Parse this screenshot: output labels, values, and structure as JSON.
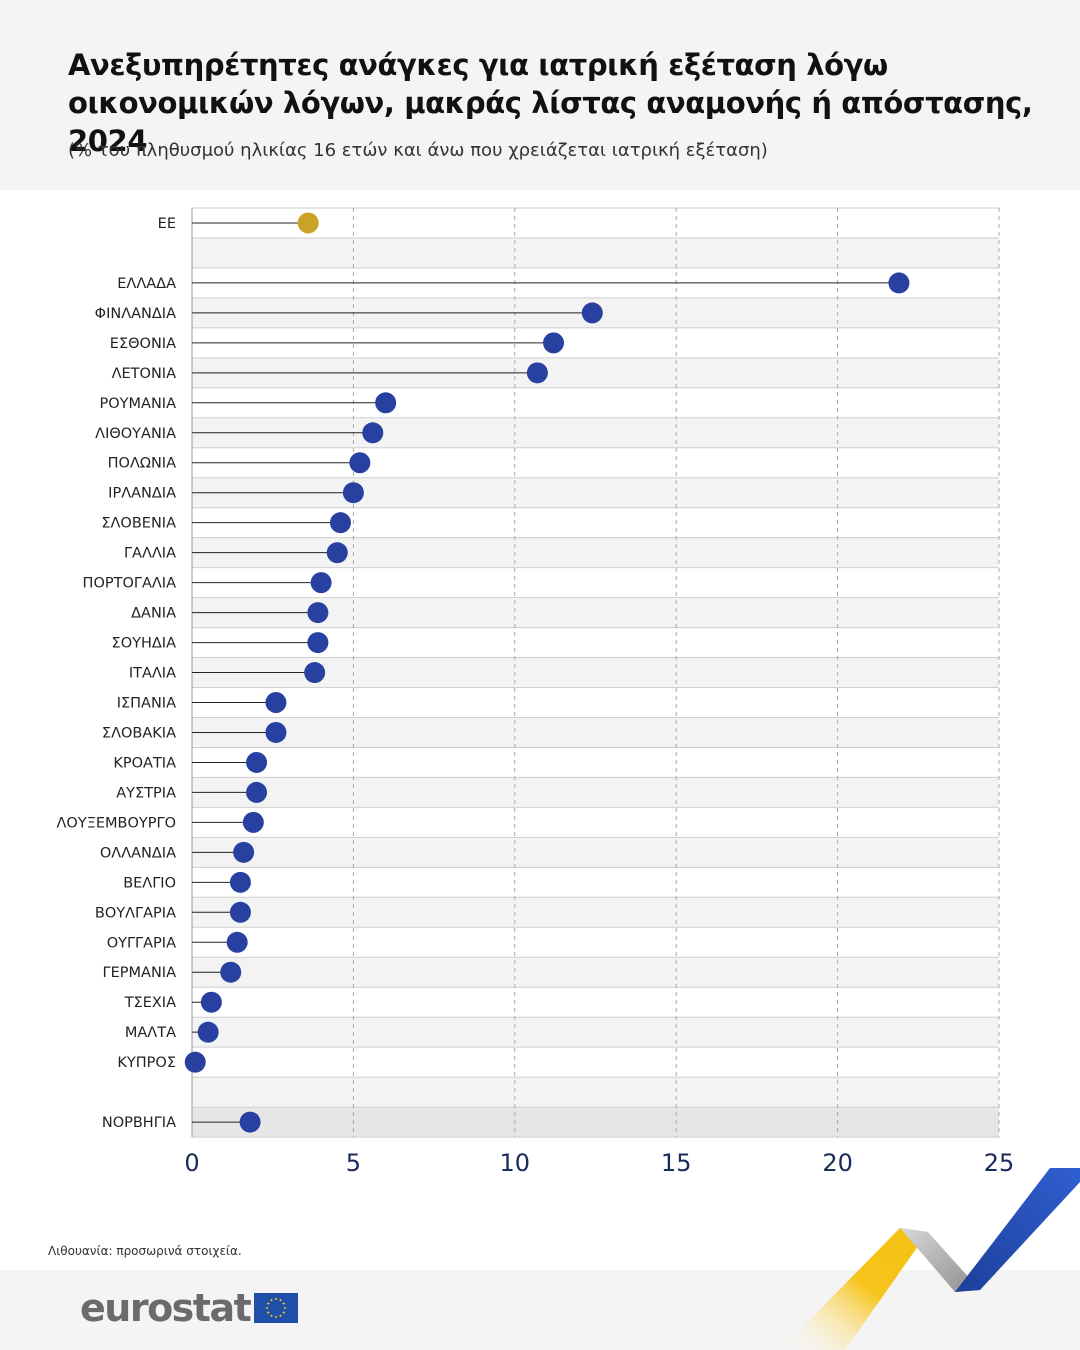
{
  "header": {
    "title": "Ανεξυπηρέτητες ανάγκες για ιατρική εξέταση λόγω οικονομικών λόγων, μακράς λίστας αναμονής  ή απόστασης, 2024",
    "subtitle": "(% του πληθυσμού ηλικίας 16 ετών και άνω που χρειάζεται ιατρική εξέταση)"
  },
  "footer": {
    "footnote": "Λιθουανία: προσωρινά στοιχεία.",
    "logo_text": "eurostat"
  },
  "colors": {
    "eu_marker": "#c9a227",
    "country_marker": "#2841a0",
    "flag_blue": "#1f4fa8",
    "flag_star": "#ffd617"
  },
  "chart_data": {
    "type": "lollipop",
    "orientation": "horizontal",
    "xlim": [
      0,
      25
    ],
    "xticks": [
      0,
      5,
      10,
      15,
      20,
      25
    ],
    "grid": "vertical dashed",
    "rows": [
      {
        "label": "ΕΕ",
        "value": 3.6,
        "group": "eu"
      },
      {
        "label": "",
        "value": null,
        "group": "gap"
      },
      {
        "label": "ΕΛΛΑΔΑ",
        "value": 21.9,
        "group": "country"
      },
      {
        "label": "ΦΙΝΛΑΝΔΙΑ",
        "value": 12.4,
        "group": "country"
      },
      {
        "label": "ΕΣΘΟΝΙΑ",
        "value": 11.2,
        "group": "country"
      },
      {
        "label": "ΛΕΤΟΝΙΑ",
        "value": 10.7,
        "group": "country"
      },
      {
        "label": "ΡΟΥΜΑΝΙΑ",
        "value": 6.0,
        "group": "country"
      },
      {
        "label": "ΛΙΘΟΥΑΝΙΑ",
        "value": 5.6,
        "group": "country"
      },
      {
        "label": "ΠΟΛΩΝΙΑ",
        "value": 5.2,
        "group": "country"
      },
      {
        "label": "ΙΡΛΑΝΔΙΑ",
        "value": 5.0,
        "group": "country"
      },
      {
        "label": "ΣΛΟΒΕΝΙΑ",
        "value": 4.6,
        "group": "country"
      },
      {
        "label": "ΓΑΛΛΙΑ",
        "value": 4.5,
        "group": "country"
      },
      {
        "label": "ΠΟΡΤΟΓΑΛΙΑ",
        "value": 4.0,
        "group": "country"
      },
      {
        "label": "ΔΑΝΙΑ",
        "value": 3.9,
        "group": "country"
      },
      {
        "label": "ΣΟΥΗΔΙΑ",
        "value": 3.9,
        "group": "country"
      },
      {
        "label": "ΙΤΑΛΙΑ",
        "value": 3.8,
        "group": "country"
      },
      {
        "label": "ΙΣΠΑΝΙΑ",
        "value": 2.6,
        "group": "country"
      },
      {
        "label": "ΣΛΟΒΑΚΙΑ",
        "value": 2.6,
        "group": "country"
      },
      {
        "label": "ΚΡΟΑΤΙΑ",
        "value": 2.0,
        "group": "country"
      },
      {
        "label": "ΑΥΣΤΡΙΑ",
        "value": 2.0,
        "group": "country"
      },
      {
        "label": "ΛΟΥΞΕΜΒΟΥΡΓΟ",
        "value": 1.9,
        "group": "country"
      },
      {
        "label": "ΟΛΛΑΝΔΙΑ",
        "value": 1.6,
        "group": "country"
      },
      {
        "label": "ΒΕΛΓΙΟ",
        "value": 1.5,
        "group": "country"
      },
      {
        "label": "ΒΟΥΛΓΑΡΙΑ",
        "value": 1.5,
        "group": "country"
      },
      {
        "label": "ΟΥΓΓΑΡΙΑ",
        "value": 1.4,
        "group": "country"
      },
      {
        "label": "ΓΕΡΜΑΝΙΑ",
        "value": 1.2,
        "group": "country"
      },
      {
        "label": "ΤΣΕΧΙΑ",
        "value": 0.6,
        "group": "country"
      },
      {
        "label": "ΜΑΛΤΑ",
        "value": 0.5,
        "group": "country"
      },
      {
        "label": "ΚΥΠΡΟΣ",
        "value": 0.1,
        "group": "country"
      },
      {
        "label": "",
        "value": null,
        "group": "gap"
      },
      {
        "label": "ΝΟΡΒΗΓΙΑ",
        "value": 1.8,
        "group": "country"
      }
    ]
  }
}
